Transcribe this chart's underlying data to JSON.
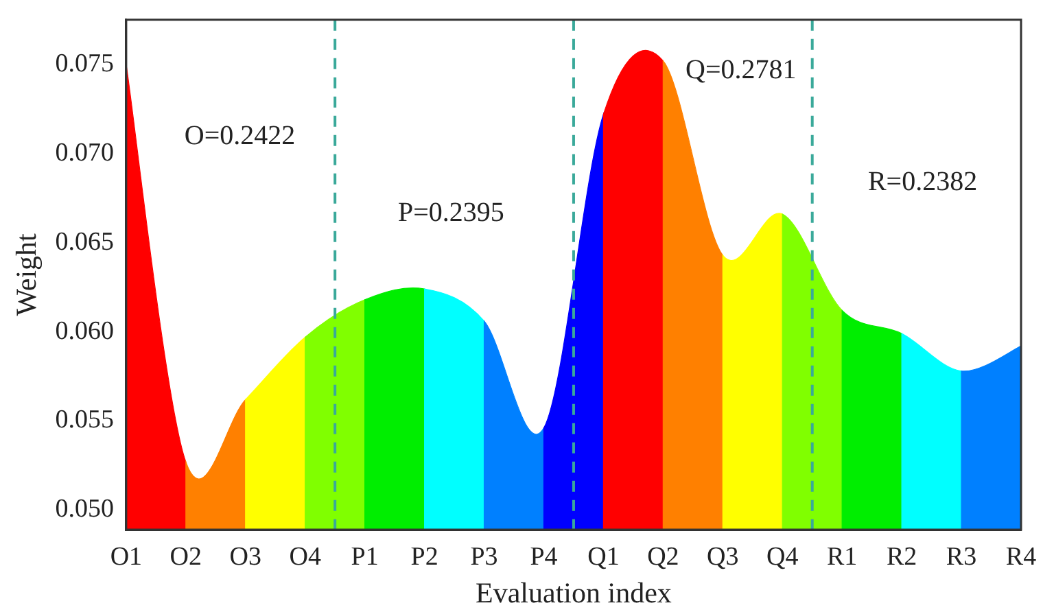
{
  "chart_data": {
    "type": "area",
    "xlabel": "Evaluation index",
    "ylabel": "Weight",
    "categories": [
      "O1",
      "O2",
      "O3",
      "O4",
      "P1",
      "P2",
      "P3",
      "P4",
      "Q1",
      "Q2",
      "Q3",
      "Q4",
      "R1",
      "R2",
      "R3",
      "R4"
    ],
    "ylim": [
      0.0489,
      0.0775
    ],
    "yticks": [
      {
        "value": 0.05,
        "label": "0.050"
      },
      {
        "value": 0.055,
        "label": "0.055"
      },
      {
        "value": 0.06,
        "label": "0.060"
      },
      {
        "value": 0.065,
        "label": "0.065"
      },
      {
        "value": 0.07,
        "label": "0.070"
      },
      {
        "value": 0.075,
        "label": "0.075"
      }
    ],
    "series": [
      {
        "color": "#ff0000",
        "values": [
          0.075,
          0.0527,
          null,
          null,
          null,
          null,
          null,
          null,
          null,
          null,
          null,
          null,
          null,
          null,
          null,
          null
        ]
      },
      {
        "color": "#ff8000",
        "values": [
          null,
          0.0527,
          0.0562,
          null,
          null,
          null,
          null,
          null,
          null,
          null,
          null,
          null,
          null,
          null,
          null,
          null
        ]
      },
      {
        "color": "#ffff00",
        "values": [
          null,
          null,
          0.0562,
          0.0597,
          null,
          null,
          null,
          null,
          null,
          null,
          null,
          null,
          null,
          null,
          null,
          null
        ]
      },
      {
        "color": "#80ff00",
        "values": [
          null,
          null,
          null,
          0.0597,
          0.0618,
          null,
          null,
          null,
          null,
          null,
          null,
          null,
          null,
          null,
          null,
          null
        ]
      },
      {
        "color": "#00ee00",
        "values": [
          null,
          null,
          null,
          null,
          0.0618,
          0.0624,
          null,
          null,
          null,
          null,
          null,
          null,
          null,
          null,
          null,
          null
        ]
      },
      {
        "color": "#00ffff",
        "values": [
          null,
          null,
          null,
          null,
          null,
          0.0624,
          0.0606,
          null,
          null,
          null,
          null,
          null,
          null,
          null,
          null,
          null
        ]
      },
      {
        "color": "#0080ff",
        "values": [
          null,
          null,
          null,
          null,
          null,
          null,
          0.0606,
          0.0546,
          null,
          null,
          null,
          null,
          null,
          null,
          null,
          null
        ]
      },
      {
        "color": "#0000ff",
        "values": [
          null,
          null,
          null,
          null,
          null,
          null,
          null,
          0.0546,
          0.0722,
          null,
          null,
          null,
          null,
          null,
          null,
          null
        ]
      },
      {
        "color": "#ff0000",
        "values": [
          null,
          null,
          null,
          null,
          null,
          null,
          null,
          null,
          0.0722,
          0.0752,
          null,
          null,
          null,
          null,
          null,
          null
        ]
      },
      {
        "color": "#ff8000",
        "values": [
          null,
          null,
          null,
          null,
          null,
          null,
          null,
          null,
          null,
          0.0752,
          0.0643,
          null,
          null,
          null,
          null,
          null
        ]
      },
      {
        "color": "#ffff00",
        "values": [
          null,
          null,
          null,
          null,
          null,
          null,
          null,
          null,
          null,
          null,
          0.0643,
          0.0666,
          null,
          null,
          null,
          null
        ]
      },
      {
        "color": "#80ff00",
        "values": [
          null,
          null,
          null,
          null,
          null,
          null,
          null,
          null,
          null,
          null,
          null,
          0.0666,
          0.0612,
          null,
          null,
          null
        ]
      },
      {
        "color": "#00ee00",
        "values": [
          null,
          null,
          null,
          null,
          null,
          null,
          null,
          null,
          null,
          null,
          null,
          null,
          0.0612,
          0.0599,
          null,
          null
        ]
      },
      {
        "color": "#00ffff",
        "values": [
          null,
          null,
          null,
          null,
          null,
          null,
          null,
          null,
          null,
          null,
          null,
          null,
          null,
          0.0599,
          0.0578,
          null
        ]
      },
      {
        "color": "#0080ff",
        "values": [
          null,
          null,
          null,
          null,
          null,
          null,
          null,
          null,
          null,
          null,
          null,
          null,
          null,
          null,
          0.0578,
          0.0592
        ]
      }
    ],
    "annotations": [
      "O=0.2422",
      "P=0.2395",
      "Q=0.2781",
      "R=0.2382"
    ]
  }
}
